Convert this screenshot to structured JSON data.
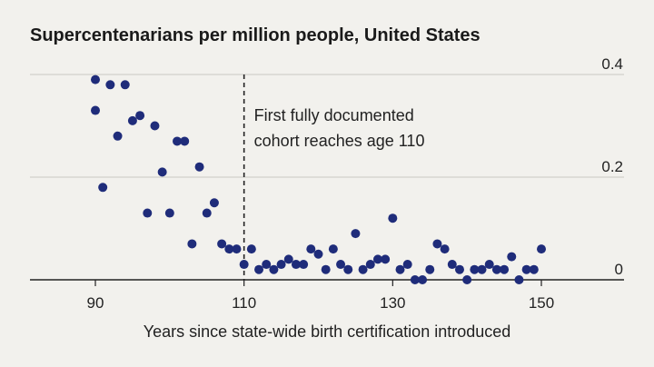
{
  "title": "Supercentenarians per million people, United States",
  "chart_data": {
    "type": "scatter",
    "title": "Supercentenarians per million people, United States",
    "xlabel": "Years since state-wide birth certification introduced",
    "ylabel": "",
    "xlim": [
      80,
      160
    ],
    "ylim": [
      0,
      0.4
    ],
    "x_ticks": [
      "90",
      "110",
      "130",
      "150"
    ],
    "y_ticks": [
      "0",
      "0.2",
      "0.4"
    ],
    "grid": "horizontal",
    "marker_color": "#1f2c7a",
    "annotation": {
      "x": 110,
      "lines": [
        "First fully documented",
        "cohort reaches age 110"
      ]
    },
    "series": [
      {
        "points": [
          [
            90,
            0.39
          ],
          [
            90,
            0.33
          ],
          [
            91,
            0.18
          ],
          [
            92,
            0.38
          ],
          [
            93,
            0.28
          ],
          [
            94,
            0.38
          ],
          [
            95,
            0.31
          ],
          [
            96,
            0.32
          ],
          [
            97,
            0.13
          ],
          [
            98,
            0.3
          ],
          [
            99,
            0.21
          ],
          [
            100,
            0.13
          ],
          [
            101,
            0.27
          ],
          [
            102,
            0.27
          ],
          [
            103,
            0.07
          ],
          [
            104,
            0.22
          ],
          [
            105,
            0.13
          ],
          [
            106,
            0.15
          ],
          [
            107,
            0.07
          ],
          [
            108,
            0.06
          ],
          [
            109,
            0.06
          ],
          [
            110,
            0.03
          ],
          [
            111,
            0.06
          ],
          [
            112,
            0.02
          ],
          [
            113,
            0.03
          ],
          [
            114,
            0.02
          ],
          [
            115,
            0.03
          ],
          [
            116,
            0.04
          ],
          [
            117,
            0.03
          ],
          [
            118,
            0.03
          ],
          [
            119,
            0.06
          ],
          [
            120,
            0.05
          ],
          [
            121,
            0.02
          ],
          [
            122,
            0.06
          ],
          [
            123,
            0.03
          ],
          [
            124,
            0.02
          ],
          [
            125,
            0.09
          ],
          [
            126,
            0.02
          ],
          [
            127,
            0.03
          ],
          [
            128,
            0.04
          ],
          [
            129,
            0.04
          ],
          [
            130,
            0.12
          ],
          [
            131,
            0.02
          ],
          [
            132,
            0.03
          ],
          [
            133,
            0.0
          ],
          [
            134,
            0.0
          ],
          [
            135,
            0.02
          ],
          [
            136,
            0.07
          ],
          [
            137,
            0.06
          ],
          [
            138,
            0.03
          ],
          [
            139,
            0.02
          ],
          [
            140,
            0.0
          ],
          [
            141,
            0.02
          ],
          [
            142,
            0.02
          ],
          [
            143,
            0.03
          ],
          [
            144,
            0.02
          ],
          [
            145,
            0.02
          ],
          [
            146,
            0.045
          ],
          [
            147,
            0.0
          ],
          [
            148,
            0.02
          ],
          [
            149,
            0.02
          ],
          [
            150,
            0.06
          ]
        ]
      }
    ]
  }
}
